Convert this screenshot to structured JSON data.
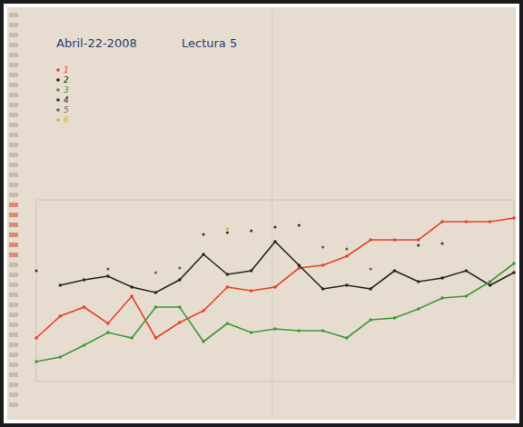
{
  "chart_data": {
    "type": "line",
    "title": "Abril-22-2008",
    "subtitle": "Lectura 5",
    "x": [
      0,
      1,
      2,
      3,
      4,
      5,
      6,
      7,
      8,
      9,
      10,
      11,
      12,
      13,
      14,
      15,
      16,
      17,
      18,
      19,
      20
    ],
    "xlim": [
      0,
      20
    ],
    "ylim": [
      0,
      100
    ],
    "grid": false,
    "legend": "top-left",
    "tick_labels": false,
    "series": [
      {
        "name": "1",
        "color": "#e8432a",
        "marker": "dot",
        "line_style": "solid",
        "values": [
          24,
          36,
          41,
          32,
          47,
          24,
          32.5,
          39,
          52,
          50,
          52,
          62.5,
          64,
          69,
          78,
          78,
          78,
          88,
          88,
          88,
          90
        ]
      },
      {
        "name": "2",
        "color": "#2a2622",
        "marker": "dot",
        "line_style": "solid",
        "values": [
          null,
          53,
          56,
          58,
          52,
          49,
          56,
          70,
          59,
          61,
          77,
          64,
          51,
          53,
          51,
          61,
          55,
          57,
          61,
          53,
          60
        ]
      },
      {
        "name": "3",
        "color": "#3f9a3a",
        "marker": "dot",
        "line_style": "solid",
        "values": [
          11,
          13.5,
          20,
          27,
          24,
          41,
          41,
          22,
          32,
          27,
          29,
          28,
          28,
          24,
          34,
          35,
          40,
          46,
          47,
          55,
          65
        ]
      },
      {
        "name": "4",
        "color": "#3a3430",
        "marker": "dot",
        "line_style": "none",
        "values": [
          61,
          null,
          null,
          null,
          null,
          null,
          null,
          81,
          82,
          83,
          85,
          86,
          null,
          null,
          null,
          null,
          75,
          76,
          null,
          null,
          null
        ]
      },
      {
        "name": "5",
        "color": "#6a625a",
        "marker": "dot",
        "line_style": "none",
        "values": [
          null,
          null,
          null,
          62,
          null,
          60,
          62.5,
          null,
          null,
          null,
          null,
          null,
          74,
          73,
          62,
          null,
          null,
          null,
          null,
          null,
          null
        ]
      },
      {
        "name": "6",
        "color": "#d8b23a",
        "marker": "dot",
        "line_style": "none",
        "values": [
          null,
          null,
          null,
          null,
          null,
          null,
          null,
          null,
          84,
          null,
          null,
          null,
          null,
          null,
          null,
          null,
          null,
          null,
          null,
          null,
          null
        ]
      }
    ]
  }
}
